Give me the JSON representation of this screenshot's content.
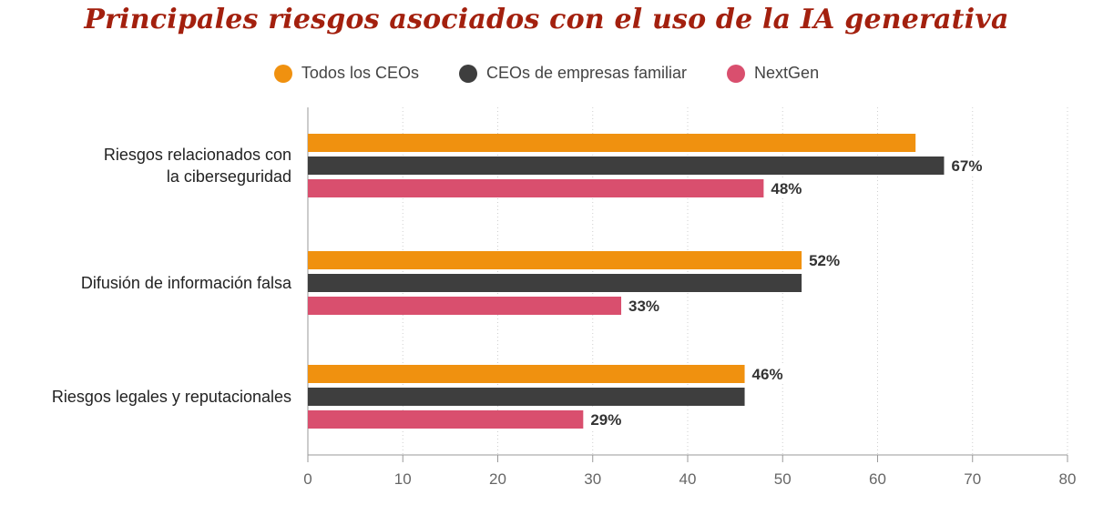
{
  "title": "Principales riesgos asociados con el uso de la IA generativa",
  "legend": [
    {
      "name": "Todos los CEOs",
      "color": "#f0910f"
    },
    {
      "name": "CEOs de empresas familiar",
      "color": "#3e3e3e"
    },
    {
      "name": "NextGen",
      "color": "#d94f6e"
    }
  ],
  "chart_data": {
    "type": "bar",
    "orientation": "horizontal",
    "categories": [
      [
        "Riesgos relacionados con",
        "la ciberseguridad"
      ],
      [
        "Difusión de información falsa"
      ],
      [
        "Riesgos legales y reputacionales"
      ]
    ],
    "series": [
      {
        "name": "Todos los CEOs",
        "color": "#f0910f",
        "values": [
          64,
          52,
          46
        ],
        "labels": [
          "",
          "52%",
          "46%"
        ]
      },
      {
        "name": "CEOs de empresas familiar",
        "color": "#3e3e3e",
        "values": [
          67,
          52,
          46
        ],
        "labels": [
          "67%",
          "",
          ""
        ]
      },
      {
        "name": "NextGen",
        "color": "#d94f6e",
        "values": [
          48,
          33,
          29
        ],
        "labels": [
          "48%",
          "33%",
          "29%"
        ]
      }
    ],
    "xlim": [
      0,
      80
    ],
    "xticks": [
      0,
      10,
      20,
      30,
      40,
      50,
      60,
      70,
      80
    ],
    "grid": true,
    "legend_position": "top"
  }
}
